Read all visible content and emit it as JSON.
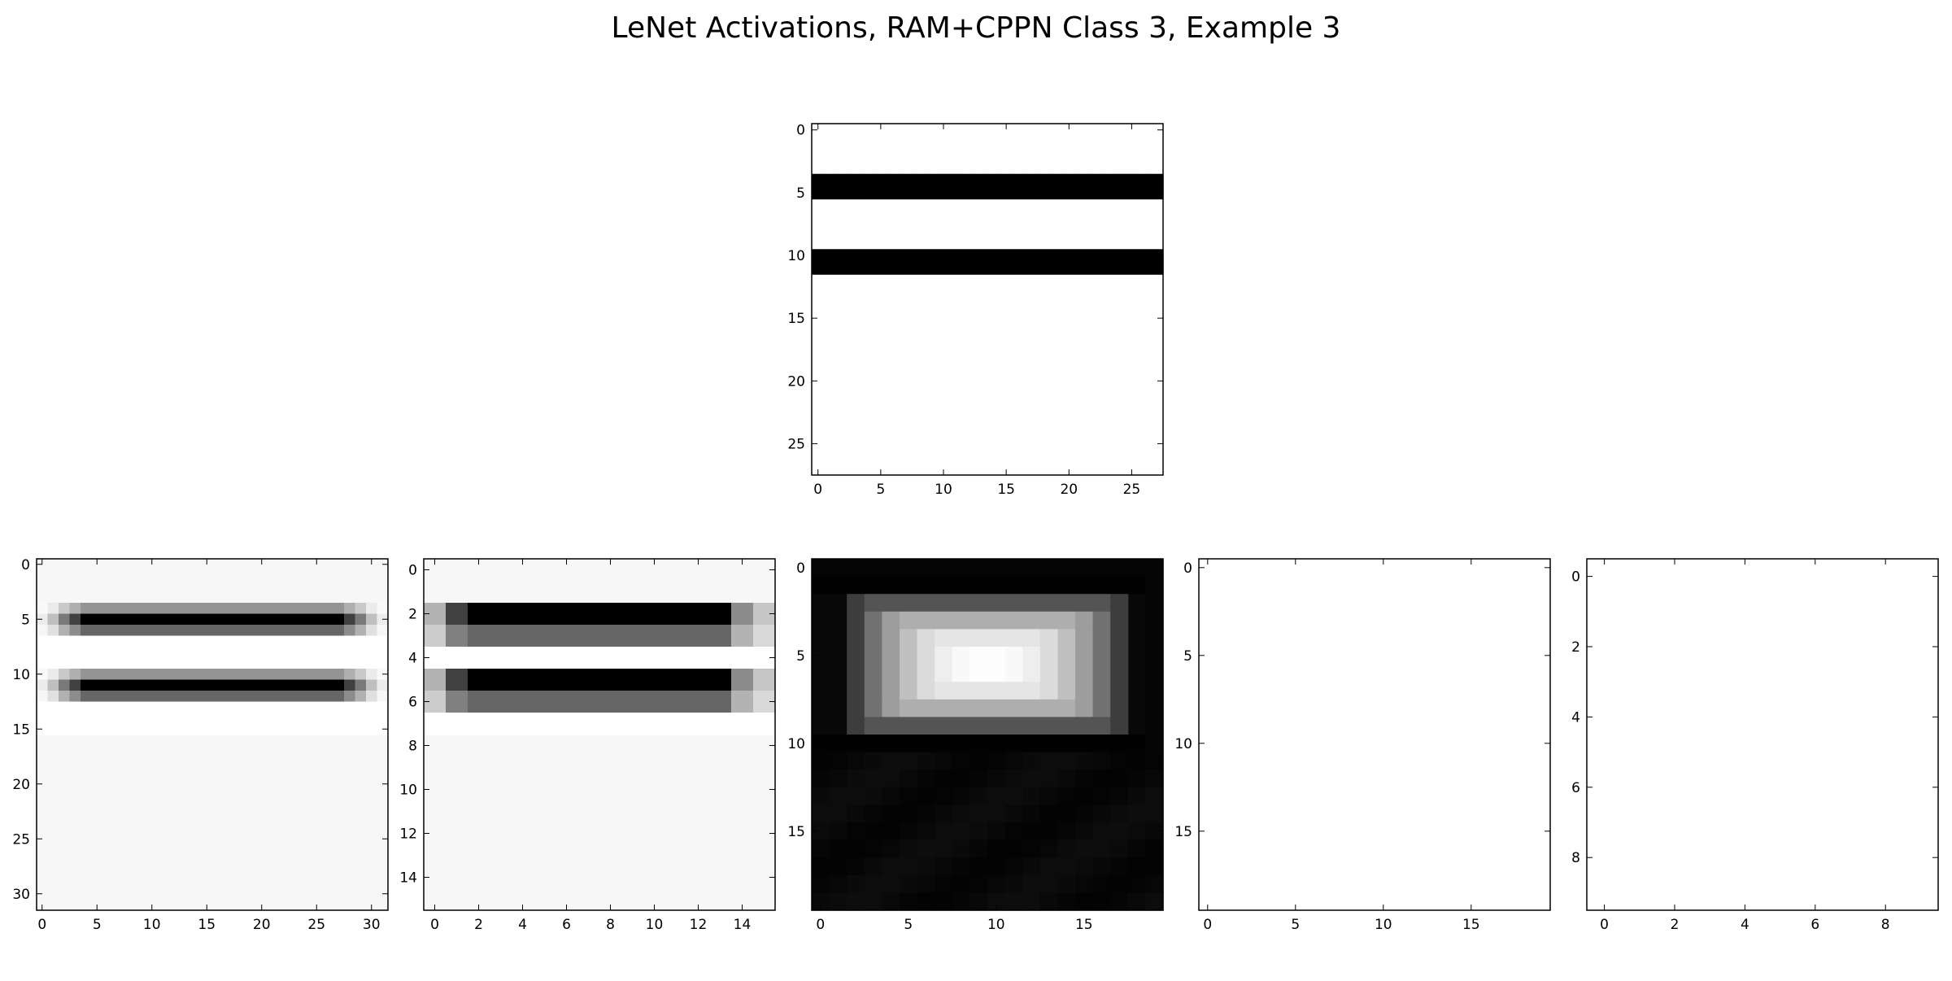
{
  "title": "LeNet Activations, RAM+CPPN Class 3, Example 3",
  "chart_data": [
    {
      "type": "heatmap",
      "name": "input",
      "size": 28,
      "xticks": [
        0,
        5,
        10,
        15,
        20,
        25
      ],
      "yticks": [
        0,
        5,
        10,
        15,
        20,
        25
      ],
      "xlim": [
        -0.5,
        27.5
      ],
      "ylim": [
        27.5,
        -0.5
      ],
      "colormap": "gray_r",
      "bands": [
        {
          "rows": [
            4,
            5
          ],
          "value": 1.0
        },
        {
          "rows": [
            10,
            11
          ],
          "value": 1.0
        }
      ],
      "background": 0.0
    },
    {
      "type": "heatmap",
      "name": "conv1",
      "size": 32,
      "xticks": [
        0,
        5,
        10,
        15,
        20,
        25,
        30
      ],
      "yticks": [
        0,
        5,
        10,
        15,
        20,
        25,
        30
      ],
      "xlim": [
        -0.5,
        31.5
      ],
      "ylim": [
        31.5,
        -0.5
      ],
      "colormap": "gray_r",
      "background": 0.03,
      "rows": [
        {
          "row": 4,
          "edge": 0.08,
          "mid": 0.42
        },
        {
          "row": 5,
          "edge": 0.25,
          "mid": 1.0
        },
        {
          "row": 6,
          "edge": 0.12,
          "mid": 0.6
        },
        {
          "row": 7,
          "edge": 0.0,
          "mid": 0.0
        },
        {
          "row": 8,
          "edge": 0.0,
          "mid": 0.0
        },
        {
          "row": 9,
          "edge": 0.0,
          "mid": 0.0
        },
        {
          "row": 10,
          "edge": 0.08,
          "mid": 0.42
        },
        {
          "row": 11,
          "edge": 0.25,
          "mid": 1.0
        },
        {
          "row": 12,
          "edge": 0.12,
          "mid": 0.6
        },
        {
          "row": 13,
          "edge": 0.0,
          "mid": 0.0
        },
        {
          "row": 14,
          "edge": 0.0,
          "mid": 0.0
        },
        {
          "row": 15,
          "edge": 0.0,
          "mid": 0.0
        }
      ],
      "core_cols": [
        4,
        27
      ]
    },
    {
      "type": "heatmap",
      "name": "pool1",
      "size": 16,
      "xticks": [
        0,
        2,
        4,
        6,
        8,
        10,
        12,
        14
      ],
      "yticks": [
        0,
        2,
        4,
        6,
        8,
        10,
        12,
        14
      ],
      "xlim": [
        -0.5,
        15.5
      ],
      "ylim": [
        15.5,
        -0.5
      ],
      "colormap": "gray_r",
      "background": 0.03,
      "rows": [
        {
          "row": 2,
          "c0": 0.3,
          "c1": 0.75,
          "mid": 1.0,
          "last": 0.45
        },
        {
          "row": 3,
          "c0": 0.2,
          "c1": 0.5,
          "mid": 0.6,
          "last": 0.3
        },
        {
          "row": 4,
          "c0": 0.0,
          "c1": 0.0,
          "mid": 0.0,
          "last": 0.0
        },
        {
          "row": 5,
          "c0": 0.3,
          "c1": 0.75,
          "mid": 1.0,
          "last": 0.45
        },
        {
          "row": 6,
          "c0": 0.2,
          "c1": 0.5,
          "mid": 0.6,
          "last": 0.3
        },
        {
          "row": 7,
          "c0": 0.0,
          "c1": 0.0,
          "mid": 0.0,
          "last": 0.0
        }
      ]
    },
    {
      "type": "heatmap",
      "name": "conv2",
      "size": 20,
      "xticks": [
        0,
        5,
        10,
        15
      ],
      "yticks": [
        0,
        5,
        10,
        15
      ],
      "xlim": [
        -0.5,
        19.5
      ],
      "ylim": [
        19.5,
        -0.5
      ],
      "colormap": "gray",
      "background": 0.03
    },
    {
      "type": "heatmap",
      "name": "pool2",
      "size": 20,
      "xticks": [
        0,
        5,
        10,
        15
      ],
      "yticks": [
        0,
        5,
        10,
        15
      ],
      "xlim": [
        -0.5,
        19.5
      ],
      "ylim": [
        19.5,
        -0.5
      ],
      "colormap": "gray_r",
      "background": 0.0
    },
    {
      "type": "heatmap",
      "name": "fc",
      "size": 10,
      "xticks": [
        0,
        2,
        4,
        6,
        8
      ],
      "yticks": [
        0,
        2,
        4,
        6,
        8
      ],
      "xlim": [
        -0.5,
        9.5
      ],
      "ylim": [
        9.5,
        -0.5
      ],
      "colormap": "gray_r",
      "background": 0.0
    }
  ]
}
